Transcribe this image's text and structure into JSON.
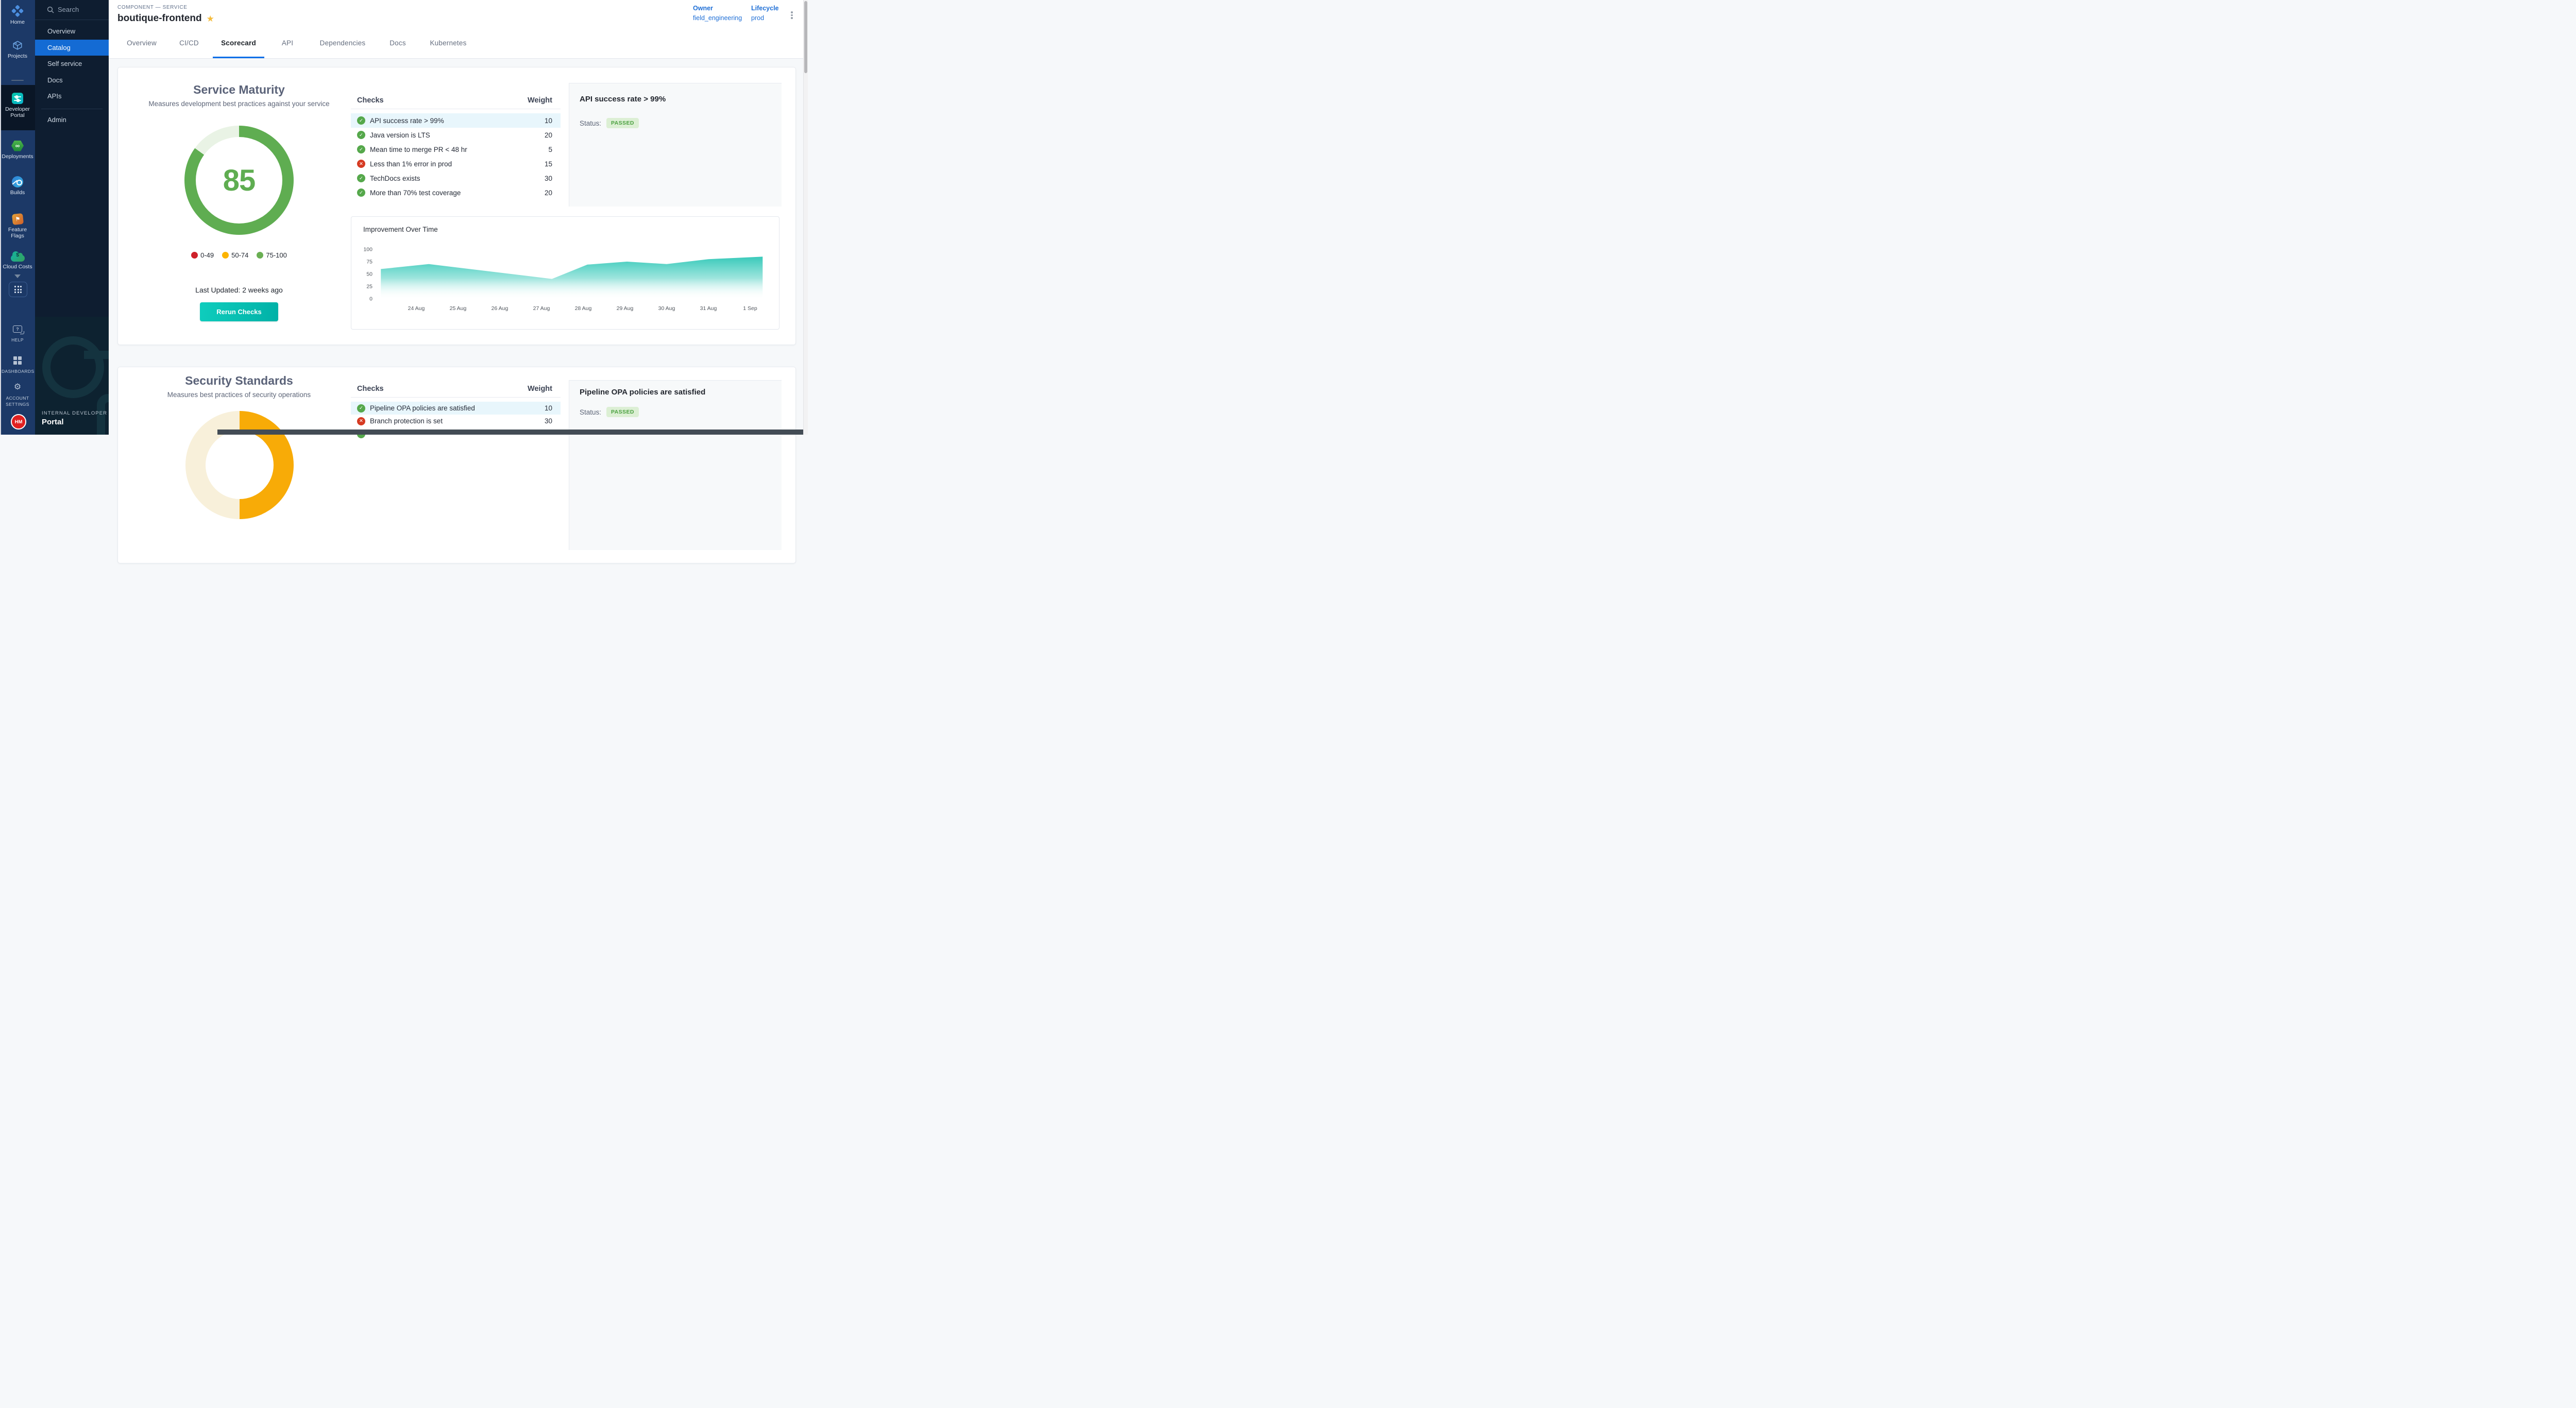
{
  "sidebar_rail": {
    "items": [
      {
        "label": "Home",
        "icon": "harness-logo-icon"
      },
      {
        "label": "Projects",
        "icon": "projects-cube-icon"
      },
      {
        "label": "Developer Portal",
        "icon": "developer-portal-icon",
        "active": true
      },
      {
        "label": "Deployments",
        "icon": "deployments-hexagon-icon"
      },
      {
        "label": "Builds",
        "icon": "builds-icon"
      },
      {
        "label": "Feature Flags",
        "icon": "feature-flags-icon"
      },
      {
        "label": "Cloud Costs",
        "icon": "cloud-costs-icon"
      }
    ],
    "bottom_items": [
      {
        "label": "HELP",
        "icon": "help-chat-icon"
      },
      {
        "label": "DASHBOARDS",
        "icon": "dashboards-grid-icon"
      },
      {
        "label": "ACCOUNT SETTINGS",
        "icon": "settings-gear-icon"
      }
    ],
    "avatar_initials": "HM"
  },
  "sidebar_nav": {
    "search_label": "Search",
    "items": [
      "Overview",
      "Catalog",
      "Self service",
      "Docs",
      "APIs",
      "Admin"
    ],
    "active_item": "Catalog",
    "footer_eyebrow": "INTERNAL DEVELOPER",
    "footer_title": "Portal"
  },
  "header": {
    "breadcrumb": "COMPONENT — SERVICE",
    "title": "boutique-frontend",
    "owner_label": "Owner",
    "owner_value": "field_engineering",
    "lifecycle_label": "Lifecycle",
    "lifecycle_value": "prod"
  },
  "tabs": {
    "items": [
      "Overview",
      "CI/CD",
      "Scorecard",
      "API",
      "Dependencies",
      "Docs",
      "Kubernetes"
    ],
    "active": "Scorecard"
  },
  "maturity": {
    "title": "Service Maturity",
    "subtitle": "Measures development best practices against your service",
    "score": "85",
    "score_percent": 85,
    "score_color": "#5fad51",
    "gauge_track_color": "#e9f3e5",
    "legend": [
      {
        "label": "0-49",
        "color": "#ce2029"
      },
      {
        "label": "50-74",
        "color": "#fcb400"
      },
      {
        "label": "75-100",
        "color": "#6aaf53"
      }
    ],
    "last_updated": "Last Updated: 2 weeks ago",
    "rerun_label": "Rerun Checks",
    "table": {
      "checks_label": "Checks",
      "weight_label": "Weight",
      "rows": [
        {
          "label": "API success rate > 99%",
          "weight": "10",
          "status": "pass",
          "highlighted": true
        },
        {
          "label": "Java version is LTS",
          "weight": "20",
          "status": "pass"
        },
        {
          "label": "Mean time to merge PR < 48 hr",
          "weight": "5",
          "status": "pass"
        },
        {
          "label": "Less than 1% error in prod",
          "weight": "15",
          "status": "fail"
        },
        {
          "label": "TechDocs exists",
          "weight": "30",
          "status": "pass"
        },
        {
          "label": "More than 70% test coverage",
          "weight": "20",
          "status": "pass"
        }
      ]
    },
    "detail": {
      "title": "API success rate > 99%",
      "status_label": "Status:",
      "status_value": "PASSED"
    }
  },
  "security": {
    "title": "Security Standards",
    "subtitle": "Measures best practices of security operations",
    "gauge_fill_color": "#f8ab07",
    "gauge_track_color": "#f8f0da",
    "gauge_fill_deg": 180,
    "table": {
      "checks_label": "Checks",
      "weight_label": "Weight",
      "rows": [
        {
          "label": "Pipeline OPA policies are satisfied",
          "weight": "10",
          "status": "pass",
          "highlighted": true
        },
        {
          "label": "Branch protection is set",
          "weight": "30",
          "status": "fail"
        },
        {
          "label": "",
          "weight": "",
          "status": "pass"
        }
      ]
    },
    "detail": {
      "title": "Pipeline OPA policies are satisfied",
      "status_label": "Status:",
      "status_value": "PASSED"
    }
  },
  "chart_data": {
    "type": "area",
    "title": "Improvement Over Time",
    "xlabel": "",
    "ylabel": "",
    "x_tick_labels": [
      "24 Aug",
      "25 Aug",
      "26 Aug",
      "27 Aug",
      "28 Aug",
      "29 Aug",
      "30 Aug",
      "31 Aug",
      "1 Sep"
    ],
    "y_ticks": [
      0,
      25,
      50,
      75,
      100
    ],
    "ylim": [
      0,
      100
    ],
    "grid": false,
    "legend_position": "none",
    "series": [
      {
        "name": "score",
        "points_day_value": [
          [
            -0.85,
            60
          ],
          [
            0.3,
            70
          ],
          [
            3.25,
            40
          ],
          [
            4.1,
            69
          ],
          [
            5.05,
            75
          ],
          [
            6.0,
            70
          ],
          [
            7.0,
            80
          ],
          [
            8.3,
            85
          ]
        ]
      }
    ],
    "area_color_top": "#28c5b4",
    "area_color_bottom": "#ffffff"
  }
}
